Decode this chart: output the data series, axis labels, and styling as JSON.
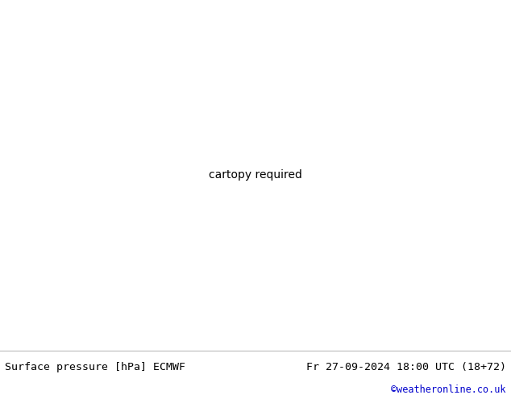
{
  "fig_width": 6.34,
  "fig_height": 4.9,
  "dpi": 100,
  "land_color": "#c8e6a0",
  "sea_color": "#d8d8e8",
  "coastline_color": "#888888",
  "border_color": "#888888",
  "footer_bg_color": "#ffffff",
  "footer_text_color": "#000000",
  "left_label": "Surface pressure [hPa] ECMWF",
  "right_label": "Fr 27-09-2024 18:00 UTC (18+72)",
  "credit_label": "©weatheronline.co.uk",
  "credit_color": "#0000cc",
  "footer_fontsize": 9.5,
  "credit_fontsize": 8.5,
  "map_extent": [
    -15,
    55,
    22,
    60
  ],
  "isobar_blue": "#0000dd",
  "isobar_black": "#000000",
  "isobar_red": "#cc0000",
  "label_fontsize": 6.5
}
